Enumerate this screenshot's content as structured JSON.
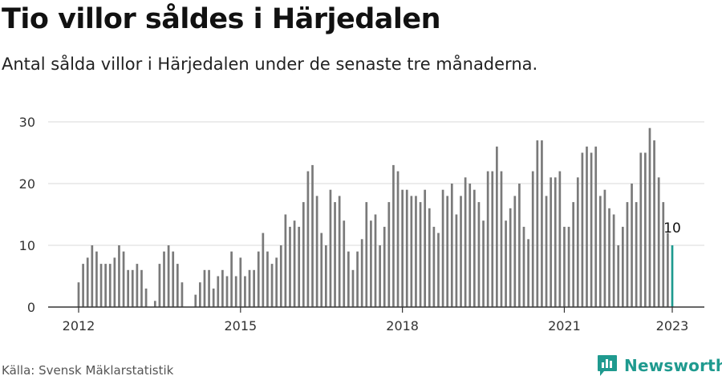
{
  "header": {
    "title": "Tio villor såldes i Härjedalen",
    "subtitle": "Antal sålda villor i Härjedalen under de senaste tre månaderna."
  },
  "footer": {
    "source": "Källa: Svensk Mäklarstatistik",
    "brand": "Newsworthy",
    "brand_icon": "bar-chart-logo-icon"
  },
  "colors": {
    "bar": "#7a7a7a",
    "highlight": "#1f9a8f",
    "grid": "#d9d9d9",
    "axis": "#333333"
  },
  "chart_data": {
    "type": "bar",
    "title": "Tio villor såldes i Härjedalen",
    "subtitle": "Antal sålda villor i Härjedalen under de senaste tre månaderna.",
    "xlabel": "",
    "ylabel": "",
    "ylim": [
      0,
      30
    ],
    "yticks": [
      0,
      10,
      20,
      30
    ],
    "grid": true,
    "x_ticks": [
      {
        "label": "2012",
        "date": "2012-01"
      },
      {
        "label": "2015",
        "date": "2015-01"
      },
      {
        "label": "2018",
        "date": "2018-01"
      },
      {
        "label": "2021",
        "date": "2021-01"
      },
      {
        "label": "2023",
        "date": "2023-01"
      }
    ],
    "categories": [
      "2012-01",
      "2012-02",
      "2012-03",
      "2012-04",
      "2012-05",
      "2012-06",
      "2012-07",
      "2012-08",
      "2012-09",
      "2012-10",
      "2012-11",
      "2012-12",
      "2013-01",
      "2013-02",
      "2013-03",
      "2013-04",
      "2013-05",
      "2013-06",
      "2013-07",
      "2013-08",
      "2013-09",
      "2013-10",
      "2013-11",
      "2013-12",
      "2014-01",
      "2014-02",
      "2014-03",
      "2014-04",
      "2014-05",
      "2014-06",
      "2014-07",
      "2014-08",
      "2014-09",
      "2014-10",
      "2014-11",
      "2014-12",
      "2015-01",
      "2015-02",
      "2015-03",
      "2015-04",
      "2015-05",
      "2015-06",
      "2015-07",
      "2015-08",
      "2015-09",
      "2015-10",
      "2015-11",
      "2015-12",
      "2016-01",
      "2016-02",
      "2016-03",
      "2016-04",
      "2016-05",
      "2016-06",
      "2016-07",
      "2016-08",
      "2016-09",
      "2016-10",
      "2016-11",
      "2016-12",
      "2017-01",
      "2017-02",
      "2017-03",
      "2017-04",
      "2017-05",
      "2017-06",
      "2017-07",
      "2017-08",
      "2017-09",
      "2017-10",
      "2017-11",
      "2017-12",
      "2018-01",
      "2018-02",
      "2018-03",
      "2018-04",
      "2018-05",
      "2018-06",
      "2018-07",
      "2018-08",
      "2018-09",
      "2018-10",
      "2018-11",
      "2018-12",
      "2019-01",
      "2019-02",
      "2019-03",
      "2019-04",
      "2019-05",
      "2019-06",
      "2019-07",
      "2019-08",
      "2019-09",
      "2019-10",
      "2019-11",
      "2019-12",
      "2020-01",
      "2020-02",
      "2020-03",
      "2020-04",
      "2020-05",
      "2020-06",
      "2020-07",
      "2020-08",
      "2020-09",
      "2020-10",
      "2020-11",
      "2020-12",
      "2021-01",
      "2021-02",
      "2021-03",
      "2021-04",
      "2021-05",
      "2021-06",
      "2021-07",
      "2021-08",
      "2021-09",
      "2021-10",
      "2021-11",
      "2021-12",
      "2022-01",
      "2022-02",
      "2022-03",
      "2022-04",
      "2022-05",
      "2022-06",
      "2022-07",
      "2022-08",
      "2022-09",
      "2022-10",
      "2022-11",
      "2022-12",
      "2023-01"
    ],
    "values": [
      4,
      7,
      8,
      10,
      9,
      7,
      7,
      7,
      8,
      10,
      9,
      6,
      6,
      7,
      6,
      3,
      null,
      1,
      7,
      9,
      10,
      9,
      7,
      4,
      null,
      null,
      2,
      4,
      6,
      6,
      3,
      5,
      6,
      5,
      9,
      5,
      8,
      5,
      6,
      6,
      9,
      12,
      9,
      7,
      8,
      10,
      15,
      13,
      14,
      13,
      17,
      22,
      23,
      18,
      12,
      10,
      19,
      17,
      18,
      14,
      9,
      6,
      9,
      11,
      17,
      14,
      15,
      10,
      13,
      17,
      23,
      22,
      19,
      19,
      18,
      18,
      17,
      19,
      16,
      13,
      12,
      19,
      18,
      20,
      15,
      18,
      21,
      20,
      19,
      17,
      14,
      22,
      22,
      26,
      22,
      14,
      16,
      18,
      20,
      13,
      11,
      22,
      27,
      27,
      18,
      21,
      21,
      22,
      13,
      13,
      17,
      21,
      25,
      26,
      25,
      26,
      18,
      19,
      16,
      15,
      10,
      13,
      17,
      20,
      17,
      25,
      25,
      29,
      27,
      21,
      17,
      12,
      10
    ],
    "highlight": {
      "category": "2023-01",
      "value": 10,
      "label": "10"
    }
  }
}
